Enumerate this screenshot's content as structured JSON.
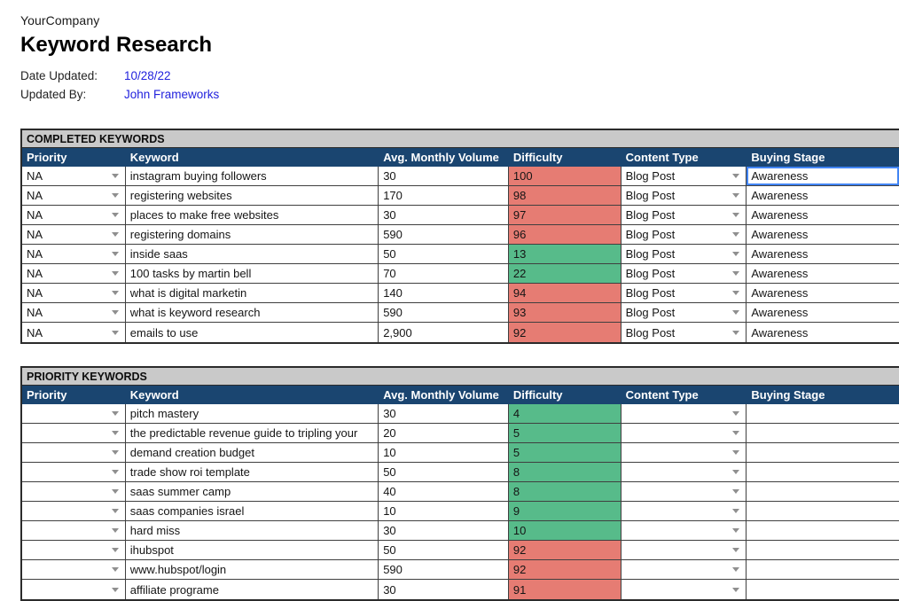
{
  "header": {
    "company": "YourCompany",
    "title": "Keyword Research",
    "date_updated_label": "Date Updated:",
    "date_updated_value": "10/28/22",
    "updated_by_label": "Updated By:",
    "updated_by_value": "John Frameworks"
  },
  "colors": {
    "header_navy": "#1a4570",
    "section_band_gray": "#c9c9c9",
    "difficulty_red": "#e67c73",
    "difficulty_green": "#57bb8a",
    "link_blue": "#2222dd",
    "selected_cell_blue": "#4285f4"
  },
  "icons": {
    "dropdown": "chevron-down-icon"
  },
  "columns": [
    "Priority",
    "Keyword",
    "Avg. Monthly Volume",
    "Difficulty",
    "Content Type",
    "Buying Stage"
  ],
  "completed": {
    "section_title": "COMPLETED KEYWORDS",
    "rows": [
      {
        "priority": "NA",
        "keyword": "instagram buying followers",
        "volume": "30",
        "difficulty": "100",
        "difficulty_level": "red",
        "content_type": "Blog Post",
        "buying_stage": "Awareness",
        "selected": true
      },
      {
        "priority": "NA",
        "keyword": "registering websites",
        "volume": "170",
        "difficulty": "98",
        "difficulty_level": "red",
        "content_type": "Blog Post",
        "buying_stage": "Awareness",
        "selected": false
      },
      {
        "priority": "NA",
        "keyword": "places to make free websites",
        "volume": "30",
        "difficulty": "97",
        "difficulty_level": "red",
        "content_type": "Blog Post",
        "buying_stage": "Awareness",
        "selected": false
      },
      {
        "priority": "NA",
        "keyword": "registering domains",
        "volume": "590",
        "difficulty": "96",
        "difficulty_level": "red",
        "content_type": "Blog Post",
        "buying_stage": "Awareness",
        "selected": false
      },
      {
        "priority": "NA",
        "keyword": "inside saas",
        "volume": "50",
        "difficulty": "13",
        "difficulty_level": "green",
        "content_type": "Blog Post",
        "buying_stage": "Awareness",
        "selected": false
      },
      {
        "priority": "NA",
        "keyword": "100 tasks by martin bell",
        "volume": "70",
        "difficulty": "22",
        "difficulty_level": "green",
        "content_type": "Blog Post",
        "buying_stage": "Awareness",
        "selected": false
      },
      {
        "priority": "NA",
        "keyword": "what is digital marketin",
        "volume": "140",
        "difficulty": "94",
        "difficulty_level": "red",
        "content_type": "Blog Post",
        "buying_stage": "Awareness",
        "selected": false
      },
      {
        "priority": "NA",
        "keyword": "what is keyword research",
        "volume": "590",
        "difficulty": "93",
        "difficulty_level": "red",
        "content_type": "Blog Post",
        "buying_stage": "Awareness",
        "selected": false
      },
      {
        "priority": "NA",
        "keyword": "emails to use",
        "volume": "2,900",
        "difficulty": "92",
        "difficulty_level": "red",
        "content_type": "Blog Post",
        "buying_stage": "Awareness",
        "selected": false
      }
    ]
  },
  "priority_section": {
    "section_title": "PRIORITY KEYWORDS",
    "rows": [
      {
        "priority": "",
        "keyword": "pitch mastery",
        "volume": "30",
        "difficulty": "4",
        "difficulty_level": "green",
        "content_type": "",
        "buying_stage": "",
        "selected": false
      },
      {
        "priority": "",
        "keyword": "the predictable revenue guide to tripling your",
        "volume": "20",
        "difficulty": "5",
        "difficulty_level": "green",
        "content_type": "",
        "buying_stage": "",
        "selected": false
      },
      {
        "priority": "",
        "keyword": "demand creation budget",
        "volume": "10",
        "difficulty": "5",
        "difficulty_level": "green",
        "content_type": "",
        "buying_stage": "",
        "selected": false
      },
      {
        "priority": "",
        "keyword": "trade show roi template",
        "volume": "50",
        "difficulty": "8",
        "difficulty_level": "green",
        "content_type": "",
        "buying_stage": "",
        "selected": false
      },
      {
        "priority": "",
        "keyword": "saas summer camp",
        "volume": "40",
        "difficulty": "8",
        "difficulty_level": "green",
        "content_type": "",
        "buying_stage": "",
        "selected": false
      },
      {
        "priority": "",
        "keyword": "saas companies israel",
        "volume": "10",
        "difficulty": "9",
        "difficulty_level": "green",
        "content_type": "",
        "buying_stage": "",
        "selected": false
      },
      {
        "priority": "",
        "keyword": "hard miss",
        "volume": "30",
        "difficulty": "10",
        "difficulty_level": "green",
        "content_type": "",
        "buying_stage": "",
        "selected": false
      },
      {
        "priority": "",
        "keyword": "ihubspot",
        "volume": "50",
        "difficulty": "92",
        "difficulty_level": "red",
        "content_type": "",
        "buying_stage": "",
        "selected": false
      },
      {
        "priority": "",
        "keyword": "www.hubspot/login",
        "volume": "590",
        "difficulty": "92",
        "difficulty_level": "red",
        "content_type": "",
        "buying_stage": "",
        "selected": false
      },
      {
        "priority": "",
        "keyword": "affiliate programe",
        "volume": "30",
        "difficulty": "91",
        "difficulty_level": "red",
        "content_type": "",
        "buying_stage": "",
        "selected": false
      }
    ]
  }
}
